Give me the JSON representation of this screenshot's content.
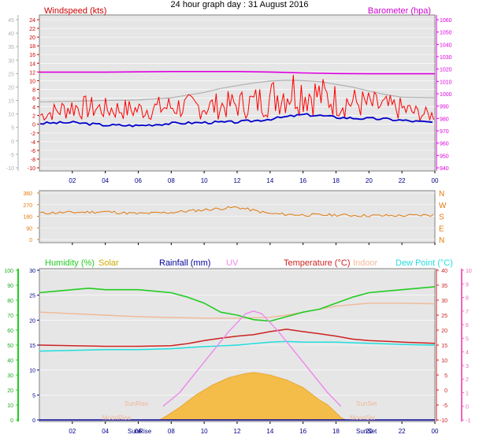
{
  "title": "24 hour graph day : 31 August 2016",
  "x_ticks": [
    "02",
    "04",
    "06",
    "08",
    "10",
    "12",
    "14",
    "16",
    "18",
    "20",
    "22",
    "00"
  ],
  "colors": {
    "wind_avg": "#0000cc",
    "wind_gust": "#ff0000",
    "barometer": "#dd00dd",
    "gray": "#b0b0b0",
    "direction": "#e07a10",
    "humidity": "#22cc22",
    "solar": "#ccaa00",
    "solar_fill": "#f4bd4a",
    "rainfall": "#000099",
    "uv": "#ee88ee",
    "temperature": "#cc2222",
    "indoor": "#f0b898",
    "dewpoint": "#22dddd",
    "plot_bg": "#e6e6e6"
  },
  "chart_data": [
    {
      "type": "line",
      "legend": {
        "left": "Windspeed (kts)",
        "right": "Barometer (hpa)"
      },
      "x_range_hours": [
        0,
        24
      ],
      "y_left_ticks": [
        -10,
        -8,
        -6,
        -4,
        -2,
        0,
        2,
        4,
        6,
        8,
        10,
        12,
        14,
        16,
        18,
        20,
        22,
        24
      ],
      "y_far_left_ticks": [
        -10,
        -5,
        0,
        5,
        10,
        15,
        20,
        25,
        30,
        35,
        40,
        45
      ],
      "y_right_ticks": [
        940,
        950,
        960,
        970,
        980,
        990,
        1000,
        1010,
        1020,
        1030,
        1040,
        1050,
        1060
      ],
      "series": [
        {
          "name": "Barometer",
          "axis": "right",
          "x": [
            0,
            4,
            8,
            12,
            14,
            16,
            18,
            20,
            22,
            24
          ],
          "y": [
            1017.5,
            1017.5,
            1018,
            1018,
            1017.6,
            1016.9,
            1016.4,
            1016.2,
            1016.2,
            1016.2
          ]
        },
        {
          "name": "Gray",
          "axis": "far-left",
          "x": [
            0,
            2,
            4,
            6,
            8,
            9,
            10,
            11,
            12,
            13,
            14,
            15,
            16,
            17,
            18,
            19,
            20,
            21,
            22,
            24
          ],
          "y": [
            14.5,
            14.7,
            15,
            15.2,
            16,
            17,
            18,
            19.5,
            20.5,
            21.5,
            22.2,
            22.5,
            22.4,
            22,
            21,
            20,
            18.5,
            17.2,
            16.2,
            16
          ]
        },
        {
          "name": "Gust",
          "axis": "left",
          "x": [
            0,
            2,
            4,
            6,
            8,
            10,
            12,
            13,
            14,
            15,
            15.5,
            16,
            17,
            18,
            19,
            20,
            21,
            22,
            23,
            24
          ],
          "y": [
            2,
            4,
            3.5,
            3.3,
            4,
            4,
            4.5,
            5,
            6,
            7.5,
            8,
            7.5,
            6.5,
            5.5,
            5,
            4.5,
            4,
            3.5,
            2.5,
            2
          ]
        },
        {
          "name": "Average",
          "axis": "left",
          "x": [
            0,
            2,
            4,
            6,
            8,
            10,
            12,
            13,
            14,
            15,
            16,
            17,
            18,
            19,
            20,
            21,
            22,
            23,
            24
          ],
          "y": [
            0.2,
            0.4,
            -0.2,
            -0.3,
            0.2,
            0.4,
            0.5,
            0.8,
            1.2,
            1.7,
            2.2,
            2,
            1.6,
            1.4,
            1.3,
            1.2,
            0.9,
            0.6,
            0.4
          ]
        }
      ]
    },
    {
      "type": "line",
      "y_left_ticks": [
        0,
        90,
        180,
        270,
        360
      ],
      "y_right_labels": [
        "N",
        "E",
        "S",
        "W",
        "N"
      ],
      "series": [
        {
          "name": "Direction",
          "x": [
            0,
            2,
            4,
            6,
            8,
            9,
            10,
            11,
            12,
            13,
            14,
            15,
            16,
            18,
            20,
            22,
            24
          ],
          "y": [
            205,
            210,
            215,
            200,
            210,
            220,
            230,
            240,
            250,
            225,
            200,
            195,
            190,
            190,
            185,
            185,
            190
          ]
        }
      ]
    },
    {
      "type": "area",
      "legend": [
        "Humidity (%)",
        "Solar",
        "Rainfall (mm)",
        "UV",
        "Temperature (°C)",
        "Indoor",
        "Dew Point (°C)"
      ],
      "y_humidity_ticks": [
        0,
        10,
        20,
        30,
        40,
        50,
        60,
        70,
        80,
        90,
        100
      ],
      "y_rain_ticks": [
        0,
        5,
        10,
        15,
        20,
        25,
        30
      ],
      "y_temp_ticks": [
        -10,
        -5,
        0,
        5,
        10,
        15,
        20,
        25,
        30,
        35,
        40
      ],
      "y_uv_ticks": [
        -1,
        0,
        1,
        2,
        3,
        4,
        5,
        6,
        7,
        8,
        9,
        10
      ],
      "annotations": {
        "sunrise": "SunRise",
        "sunset": "SunSet",
        "moonrise": "MoonRise",
        "moonset": "MoonSet"
      },
      "series": [
        {
          "name": "Humidity",
          "axis": "humidity",
          "x": [
            0,
            1,
            2,
            3,
            4,
            5,
            6,
            7,
            8,
            9,
            10,
            11,
            12,
            13,
            14,
            15,
            16,
            17,
            18,
            19,
            20,
            21,
            22,
            23,
            24
          ],
          "y": [
            85,
            86,
            87,
            88,
            87,
            87,
            87,
            86,
            85,
            82,
            78,
            72,
            70,
            67,
            66,
            69,
            72,
            74,
            78,
            82,
            85,
            86,
            87,
            88,
            89
          ]
        },
        {
          "name": "Temperature",
          "axis": "temp",
          "x": [
            0,
            2,
            4,
            6,
            8,
            9,
            10,
            11,
            12,
            13,
            14,
            15,
            16,
            17,
            18,
            19,
            20,
            21,
            22,
            23,
            24
          ],
          "y": [
            15,
            14.8,
            14.6,
            14.6,
            14.8,
            15.5,
            16.5,
            17.3,
            18,
            18.5,
            19.5,
            20.3,
            19.5,
            18.8,
            18,
            17,
            16.5,
            16.3,
            16,
            15.8,
            15.6
          ]
        },
        {
          "name": "Dew Point",
          "axis": "temp",
          "x": [
            0,
            2,
            4,
            6,
            8,
            10,
            12,
            13,
            14,
            15,
            16,
            17,
            18,
            19,
            20,
            22,
            24
          ],
          "y": [
            13,
            13.2,
            13.5,
            13.5,
            13.8,
            14.5,
            15,
            15.5,
            16,
            16.2,
            16,
            16,
            16,
            15.8,
            15.6,
            15.2,
            15
          ]
        },
        {
          "name": "Indoor",
          "axis": "temp",
          "x": [
            0,
            2,
            4,
            6,
            8,
            10,
            12,
            14,
            15,
            16,
            17,
            18,
            19,
            20,
            22,
            24
          ],
          "y": [
            26,
            25.5,
            25,
            24.5,
            24.2,
            24,
            24,
            24.3,
            25,
            26,
            27,
            28,
            28.5,
            29,
            29,
            28.8
          ]
        },
        {
          "name": "Solar",
          "axis": "rain",
          "x": [
            7.3,
            7.8,
            8.5,
            9.5,
            10.5,
            11.5,
            12.5,
            13,
            13.5,
            14,
            15,
            16,
            17,
            17.5,
            18.3,
            18.6
          ],
          "y": [
            0,
            1,
            2.5,
            5,
            7,
            8.5,
            9.3,
            9.5,
            9.3,
            9,
            8,
            6.5,
            4,
            3,
            0.5,
            0
          ]
        },
        {
          "name": "UV",
          "axis": "uv",
          "x": [
            7.5,
            8.5,
            9.5,
            10.5,
            11.5,
            12.5,
            13,
            13.5,
            14.5,
            15.5,
            16.5,
            17.5,
            18.3
          ],
          "y": [
            0,
            1,
            2.5,
            4,
            5.5,
            6.8,
            7,
            6.8,
            5.5,
            4,
            2.5,
            1,
            0
          ]
        }
      ]
    }
  ]
}
